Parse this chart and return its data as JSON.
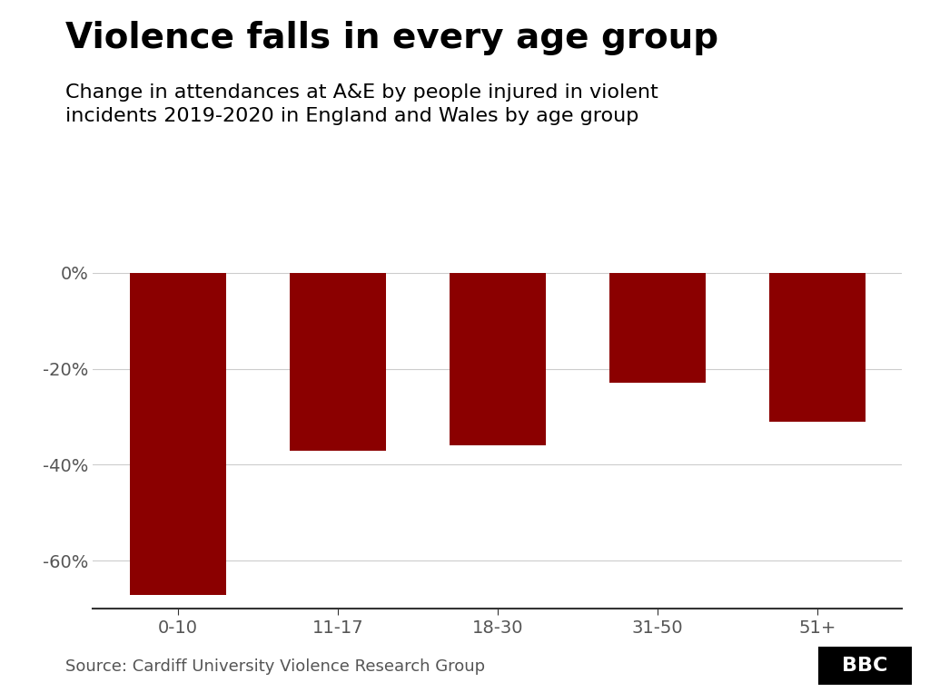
{
  "title": "Violence falls in every age group",
  "subtitle": "Change in attendances at A&E by people injured in violent\nincidents 2019-2020 in England and Wales by age group",
  "categories": [
    "0-10",
    "11-17",
    "18-30",
    "31-50",
    "51+"
  ],
  "values": [
    -67,
    -37,
    -36,
    -23,
    -31
  ],
  "bar_color": "#8B0000",
  "ylim": [
    -70,
    2
  ],
  "yticks": [
    0,
    -20,
    -40,
    -60
  ],
  "ytick_labels": [
    "0%",
    "-20%",
    "-40%",
    "-60%"
  ],
  "source": "Source: Cardiff University Violence Research Group",
  "background_color": "#ffffff",
  "title_fontsize": 28,
  "subtitle_fontsize": 16,
  "tick_fontsize": 14,
  "source_fontsize": 13,
  "bbc_label": "BBC"
}
